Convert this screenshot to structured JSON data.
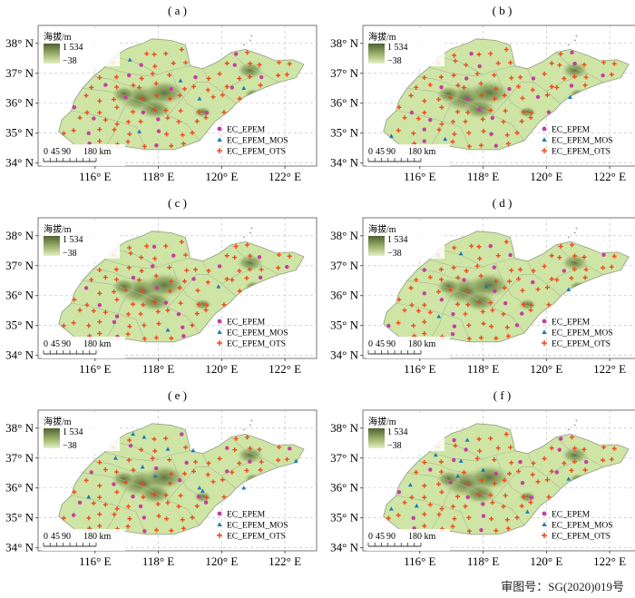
{
  "panels": [
    {
      "label": "( a )",
      "mos": [
        [
          117.1,
          37.45
        ],
        [
          118.7,
          36.75
        ],
        [
          119.3,
          36.15
        ],
        [
          120.7,
          36.5
        ],
        [
          117.4,
          35.05
        ]
      ]
    },
    {
      "label": "( b )",
      "mos": [
        [
          120.75,
          36.2
        ],
        [
          116.8,
          34.8
        ],
        [
          115.1,
          34.9
        ]
      ]
    },
    {
      "label": "( c )",
      "mos": [
        [
          118.3,
          34.85
        ],
        [
          119.9,
          36.3
        ]
      ]
    },
    {
      "label": "( d )",
      "mos": [
        [
          117.3,
          37.4
        ],
        [
          118.1,
          36.3
        ],
        [
          120.7,
          36.2
        ],
        [
          116.6,
          35.3
        ]
      ]
    },
    {
      "label": "( e )",
      "mos": [
        [
          117.2,
          37.8
        ],
        [
          117.55,
          37.7
        ],
        [
          118.3,
          37.3
        ],
        [
          119.1,
          37.25
        ],
        [
          116.65,
          37.0
        ],
        [
          122.35,
          36.9
        ],
        [
          117.5,
          36.7
        ],
        [
          117.9,
          36.4
        ],
        [
          115.8,
          35.7
        ],
        [
          119.3,
          36.0
        ],
        [
          119.4,
          35.9
        ],
        [
          120.7,
          36.0
        ]
      ]
    },
    {
      "label": "( f )",
      "mos": [
        [
          117.5,
          37.6
        ],
        [
          116.5,
          37.1
        ],
        [
          117.3,
          36.9
        ],
        [
          118.0,
          36.6
        ],
        [
          117.2,
          36.4
        ],
        [
          115.1,
          35.3
        ],
        [
          115.9,
          35.4
        ],
        [
          120.7,
          36.3
        ],
        [
          119.4,
          35.2
        ],
        [
          115.7,
          36.1
        ]
      ]
    }
  ],
  "legend": {
    "elevation_title": "海拔/m",
    "max": "1 534",
    "min": "−38",
    "series": [
      {
        "name": "EC_EPEM",
        "color": "#c2409f",
        "marker": "circle"
      },
      {
        "name": "EC_EPEM_MOS",
        "color": "#1a79b8",
        "marker": "triangle"
      },
      {
        "name": "EC_EPEM_OTS",
        "color": "#ee4a1a",
        "marker": "plus"
      }
    ]
  },
  "axes": {
    "lat_ticks": [
      {
        "v": 34,
        "label": "34° N"
      },
      {
        "v": 35,
        "label": "35° N"
      },
      {
        "v": 36,
        "label": "36° N"
      },
      {
        "v": 37,
        "label": "37° N"
      },
      {
        "v": 38,
        "label": "38° N"
      }
    ],
    "lon_ticks": [
      {
        "v": 116,
        "label": "116° E"
      },
      {
        "v": 118,
        "label": "118° E"
      },
      {
        "v": 120,
        "label": "120° E"
      },
      {
        "v": 122,
        "label": "122° E"
      }
    ],
    "lon_range": [
      114.2,
      123.0
    ],
    "lat_range": [
      33.9,
      38.6
    ]
  },
  "scale_bar": {
    "labels": [
      "0",
      "45",
      "90",
      "180 km"
    ]
  },
  "footer": {
    "approval_number": "审图号：SG(2020)019号"
  },
  "colors": {
    "land": "#cfe5a6",
    "hill": "#8aa05c",
    "peak": "#5b6e3a"
  }
}
